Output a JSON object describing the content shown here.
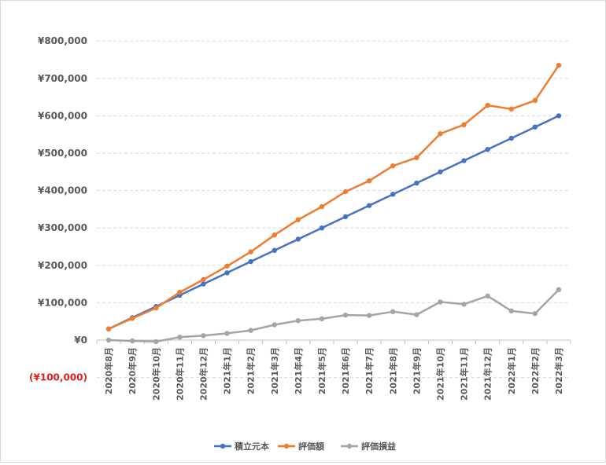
{
  "chart_data": {
    "type": "line",
    "categories": [
      "2020年8月",
      "2020年9月",
      "2020年10月",
      "2020年11月",
      "2020年12月",
      "2021年1月",
      "2021年2月",
      "2021年3月",
      "2021年4月",
      "2021年5月",
      "2021年6月",
      "2021年7月",
      "2021年8月",
      "2021年9月",
      "2021年10月",
      "2021年11月",
      "2021年12月",
      "2022年1月",
      "2022年2月",
      "2022年3月"
    ],
    "ylim": [
      -100000,
      800000
    ],
    "ytick_values": [
      -100000,
      0,
      100000,
      200000,
      300000,
      400000,
      500000,
      600000,
      700000,
      800000
    ],
    "ytick_labels": [
      "(¥100,000)",
      "¥0",
      "¥100,000",
      "¥200,000",
      "¥300,000",
      "¥400,000",
      "¥500,000",
      "¥600,000",
      "¥700,000",
      "¥800,000"
    ],
    "grid": true,
    "legend_position": "bottom",
    "series": [
      {
        "name": "積立元本",
        "color": "#4472c4",
        "values": [
          30000,
          60000,
          90000,
          120000,
          150000,
          180000,
          210000,
          240000,
          270000,
          300000,
          330000,
          360000,
          390000,
          420000,
          450000,
          480000,
          510000,
          540000,
          570000,
          600000
        ]
      },
      {
        "name": "評価額",
        "color": "#ed7d31",
        "values": [
          30000,
          58000,
          86000,
          128000,
          162000,
          198000,
          236000,
          281000,
          322000,
          357000,
          397000,
          426000,
          466000,
          488000,
          552000,
          576000,
          628000,
          618000,
          641000,
          735000
        ]
      },
      {
        "name": "評価損益",
        "color": "#a5a5a5",
        "values": [
          0,
          -2000,
          -4000,
          8000,
          12000,
          18000,
          26000,
          41000,
          52000,
          57000,
          67000,
          66000,
          76000,
          68000,
          102000,
          96000,
          118000,
          78000,
          71000,
          135000
        ]
      }
    ]
  }
}
